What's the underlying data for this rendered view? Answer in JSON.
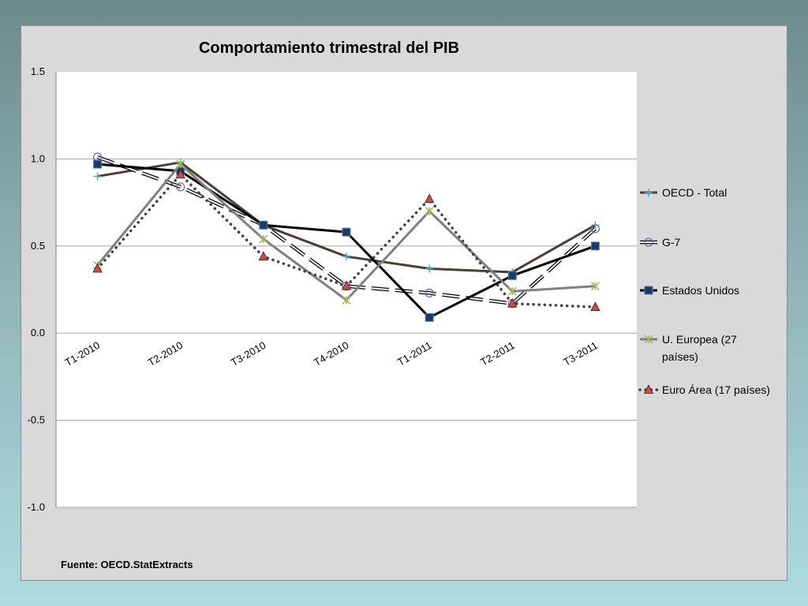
{
  "chart_data": {
    "type": "line",
    "title": "Comportamiento trimestral del PIB",
    "source": "Fuente: OECD.StatExtracts",
    "categories": [
      "T1-2010",
      "T2-2010",
      "T3-2010",
      "T4-2010",
      "T1-2011",
      "T2-2011",
      "T3-2011"
    ],
    "ylim": [
      -1.0,
      1.5
    ],
    "yticks": [
      "-1.0",
      "-0.5",
      "0.0",
      "0.5",
      "1.0",
      "1.5"
    ],
    "ytick_values": [
      -1.0,
      -0.5,
      0.0,
      0.5,
      1.0,
      1.5
    ],
    "grid": true,
    "legend_position": "right",
    "series": [
      {
        "name": "OECD - Total",
        "values": [
          0.9,
          0.98,
          0.62,
          0.44,
          0.37,
          0.35,
          0.62
        ],
        "color": "#4a4030",
        "style": "solid",
        "marker": "plus",
        "marker_color": "#4bacc6"
      },
      {
        "name": "G-7",
        "values": [
          1.01,
          0.84,
          0.62,
          0.27,
          0.23,
          0.17,
          0.6
        ],
        "color": "#000000",
        "style": "dash-outline",
        "marker": "circle",
        "marker_color": "#8064a2"
      },
      {
        "name": "Estados Unidos",
        "values": [
          0.97,
          0.93,
          0.62,
          0.58,
          0.09,
          0.33,
          0.5
        ],
        "color": "#000000",
        "style": "solid",
        "marker": "square",
        "marker_color": "#1f3864"
      },
      {
        "name": "U. Europea (27 países)",
        "legend_lines": [
          "U. Europea (27",
          "países)"
        ],
        "values": [
          0.39,
          0.97,
          0.54,
          0.19,
          0.7,
          0.24,
          0.27
        ],
        "color": "#808080",
        "style": "solid",
        "marker": "star",
        "marker_color": "#9bbb59"
      },
      {
        "name": "Euro Área (17 países)",
        "values": [
          0.37,
          0.91,
          0.44,
          0.27,
          0.77,
          0.17,
          0.15
        ],
        "color": "#404040",
        "style": "dotted",
        "marker": "triangle",
        "marker_color": "#c0504d"
      }
    ]
  }
}
